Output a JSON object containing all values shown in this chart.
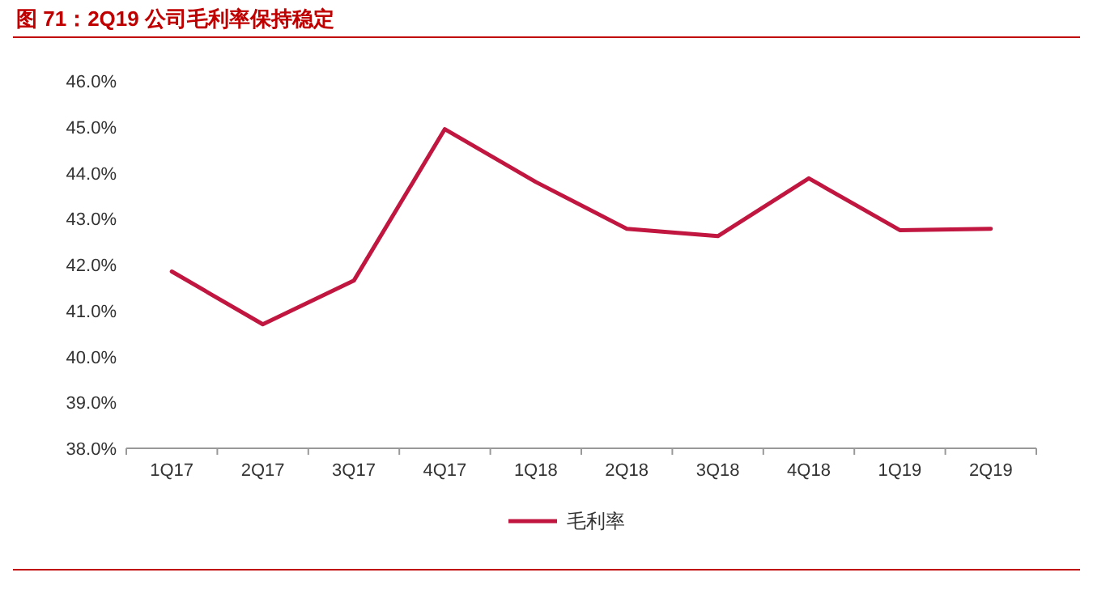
{
  "chart_data": {
    "type": "line",
    "title": "图 71：2Q19 公司毛利率保持稳定",
    "categories": [
      "1Q17",
      "2Q17",
      "3Q17",
      "4Q17",
      "1Q18",
      "2Q18",
      "3Q18",
      "4Q18",
      "1Q19",
      "2Q19"
    ],
    "series": [
      {
        "name": "毛利率",
        "color": "#c0163f",
        "values": [
          41.85,
          40.7,
          41.65,
          44.95,
          43.8,
          42.78,
          42.62,
          43.88,
          42.75,
          42.78
        ]
      }
    ],
    "ylim": [
      38,
      46
    ],
    "yticks": [
      {
        "value": 38,
        "label": "38.0%"
      },
      {
        "value": 39,
        "label": "39.0%"
      },
      {
        "value": 40,
        "label": "40.0%"
      },
      {
        "value": 41,
        "label": "41.0%"
      },
      {
        "value": 42,
        "label": "42.0%"
      },
      {
        "value": 43,
        "label": "43.0%"
      },
      {
        "value": 44,
        "label": "44.0%"
      },
      {
        "value": 45,
        "label": "45.0%"
      },
      {
        "value": 46,
        "label": "46.0%"
      }
    ],
    "legend": "bottom",
    "grid": false
  }
}
